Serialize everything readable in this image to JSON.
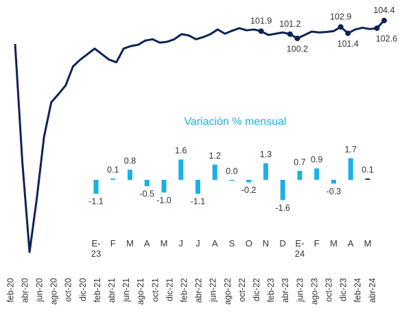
{
  "chart_data": [
    {
      "type": "line",
      "categories": [
        "feb-20",
        null,
        "abr-20",
        null,
        "jun-20",
        null,
        "ago-20",
        null,
        "oct-20",
        null,
        "dic-20",
        null,
        "feb-21",
        null,
        "abr-21",
        null,
        "jun-21",
        null,
        "ago-21",
        null,
        "oct-21",
        null,
        "dic-21",
        null,
        "feb-22",
        null,
        "abr-22",
        null,
        "jun-22",
        null,
        "ago-22",
        null,
        "oct-22",
        null,
        "dic-22",
        null,
        "feb-23",
        null,
        "abr-23",
        null,
        "jun-23",
        null,
        "ago-23",
        null,
        "oct-23",
        null,
        "dic-23",
        null,
        "feb-24",
        null,
        "abr-24",
        null
      ],
      "values": [
        98.9,
        71.2,
        50.0,
        62.6,
        77.1,
        85.2,
        87.1,
        89.2,
        93.6,
        95.2,
        96.5,
        97.8,
        96.5,
        95.2,
        94.6,
        97.8,
        98.4,
        98.7,
        99.7,
        100.0,
        99.2,
        99.4,
        100.0,
        101.2,
        100.9,
        100.0,
        100.5,
        101.2,
        102.3,
        101.3,
        102.0,
        102.6,
        102.1,
        102.3,
        101.9,
        101.0,
        101.3,
        101.6,
        101.2,
        100.2,
        101.0,
        101.8,
        101.6,
        101.7,
        101.9,
        102.9,
        101.4,
        102.3,
        102.7,
        102.4,
        102.6,
        104.4
      ],
      "value_labels": [
        null,
        null,
        null,
        null,
        null,
        null,
        null,
        null,
        null,
        null,
        null,
        null,
        null,
        null,
        null,
        null,
        null,
        null,
        null,
        null,
        null,
        null,
        null,
        null,
        null,
        null,
        null,
        null,
        null,
        null,
        null,
        null,
        null,
        null,
        "101.9",
        null,
        null,
        null,
        "101.2",
        "100.2",
        null,
        null,
        null,
        null,
        null,
        "102.9",
        "101.4",
        null,
        null,
        null,
        "102.6",
        "104.4"
      ],
      "color": "#0d2256",
      "ylim": [
        48,
        106
      ]
    },
    {
      "type": "bar",
      "title": "Variación % mensual",
      "categories": [
        "E-\n23",
        "F",
        "M",
        "A",
        "M",
        "J",
        "J",
        "A",
        "S",
        "O",
        "N",
        "D",
        "E-\n24",
        "F",
        "M",
        "A",
        "M"
      ],
      "values": [
        -1.1,
        0.1,
        0.8,
        -0.5,
        -1.0,
        1.6,
        -1.1,
        1.2,
        0.0,
        -0.2,
        1.3,
        -1.6,
        0.7,
        0.9,
        -0.3,
        1.7,
        0.1
      ],
      "value_labels": [
        "-1.1",
        "0.1",
        "0.8",
        "-0.5",
        "-1.0",
        "1.6",
        "-1.1",
        "1.2",
        "0.0",
        "-0.2",
        "1.3",
        "-1.6",
        "0.7",
        "0.9",
        "-0.3",
        "1.7",
        "0.1"
      ],
      "colors": [
        "#1ab0e8",
        "#1ab0e8",
        "#1ab0e8",
        "#1ab0e8",
        "#1ab0e8",
        "#1ab0e8",
        "#1ab0e8",
        "#1ab0e8",
        "#1ab0e8",
        "#1ab0e8",
        "#1ab0e8",
        "#1ab0e8",
        "#1ab0e8",
        "#1ab0e8",
        "#1ab0e8",
        "#1ab0e8",
        "#0d2256"
      ],
      "ylim": [
        -2,
        2
      ]
    }
  ]
}
